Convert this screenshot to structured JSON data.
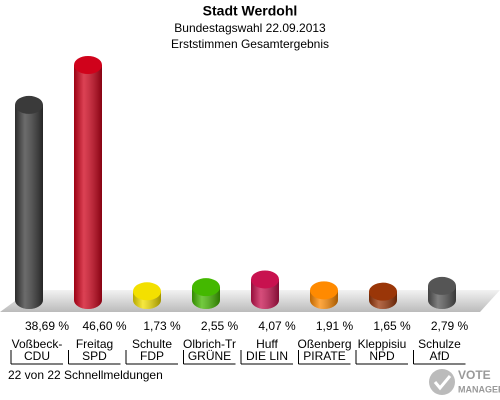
{
  "chart_data": {
    "type": "bar",
    "title": "Stadt Werdohl",
    "subtitle": "Bundestagswahl 22.09.2013",
    "subtitle2": "Erststimmen Gesamtergebnis",
    "categories": [
      "Voßbeck-",
      "Freitag",
      "Schulte",
      "Olbrich-Tr",
      "Huff",
      "Oßenberg",
      "Kleppisiu",
      "Schulze"
    ],
    "parties": [
      "CDU",
      "SPD",
      "FDP",
      "GRÜNE",
      "DIE LIN",
      "PIRATE",
      "NPD",
      "AfD"
    ],
    "values": [
      38.69,
      46.6,
      1.73,
      2.55,
      4.07,
      1.91,
      1.65,
      2.79
    ],
    "value_labels": [
      "38,69 %",
      "46,60 %",
      "1,73 %",
      "2,55 %",
      "4,07 %",
      "1,91 %",
      "1,65 %",
      "2,79 %"
    ],
    "colors": [
      "#3a3a3a",
      "#d0021b",
      "#f3e000",
      "#44b800",
      "#c8124f",
      "#ff8a00",
      "#9a3608",
      "#555555"
    ],
    "footer": "22 von 22 Schnellmeldungen",
    "logo": [
      "VOTE",
      "MANAGER"
    ]
  }
}
